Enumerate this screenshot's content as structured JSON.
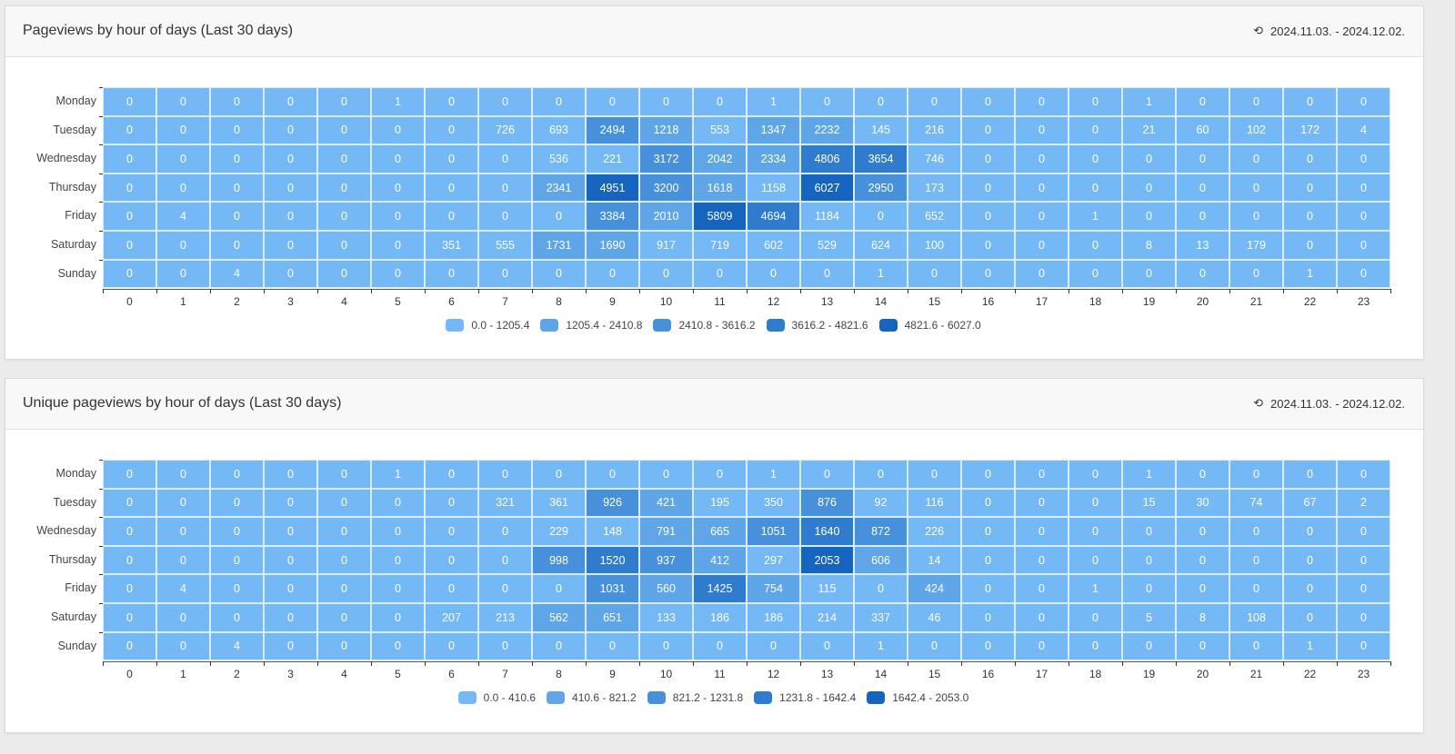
{
  "colors": [
    "#74b9f5",
    "#5fa6e8",
    "#4690dc",
    "#2f7ccf",
    "#1565c0"
  ],
  "panels": [
    {
      "title": "Pageviews by hour of days (Last 30 days)",
      "date_range": "2024.11.03. - 2024.12.02.",
      "icon": "history-icon"
    },
    {
      "title": "Unique pageviews by hour of days (Last 30 days)",
      "date_range": "2024.11.03. - 2024.12.02.",
      "icon": "history-icon"
    }
  ],
  "chart_data": [
    {
      "type": "heatmap",
      "x": [
        "0",
        "1",
        "2",
        "3",
        "4",
        "5",
        "6",
        "7",
        "8",
        "9",
        "10",
        "11",
        "12",
        "13",
        "14",
        "15",
        "16",
        "17",
        "18",
        "19",
        "20",
        "21",
        "22",
        "23"
      ],
      "y": [
        "Monday",
        "Tuesday",
        "Wednesday",
        "Thursday",
        "Friday",
        "Saturday",
        "Sunday"
      ],
      "legend": [
        "0.0 - 1205.4",
        "1205.4 - 2410.8",
        "2410.8 - 3616.2",
        "3616.2 - 4821.6",
        "4821.6 - 6027.0"
      ],
      "range": [
        0,
        6027
      ],
      "values": [
        [
          0,
          0,
          0,
          0,
          0,
          1,
          0,
          0,
          0,
          0,
          0,
          0,
          1,
          0,
          0,
          0,
          0,
          0,
          0,
          1,
          0,
          0,
          0,
          0
        ],
        [
          0,
          0,
          0,
          0,
          0,
          0,
          0,
          726,
          693,
          2494,
          1218,
          553,
          1347,
          2232,
          145,
          216,
          0,
          0,
          0,
          21,
          60,
          102,
          172,
          4
        ],
        [
          0,
          0,
          0,
          0,
          0,
          0,
          0,
          0,
          536,
          221,
          3172,
          2042,
          2334,
          4806,
          3654,
          746,
          0,
          0,
          0,
          0,
          0,
          0,
          0,
          0
        ],
        [
          0,
          0,
          0,
          0,
          0,
          0,
          0,
          0,
          2341,
          4951,
          3200,
          1618,
          1158,
          6027,
          2950,
          173,
          0,
          0,
          0,
          0,
          0,
          0,
          0,
          0
        ],
        [
          0,
          4,
          0,
          0,
          0,
          0,
          0,
          0,
          0,
          3384,
          2010,
          5809,
          4694,
          1184,
          0,
          652,
          0,
          0,
          1,
          0,
          0,
          0,
          0,
          0
        ],
        [
          0,
          0,
          0,
          0,
          0,
          0,
          351,
          555,
          1731,
          1690,
          917,
          719,
          602,
          529,
          624,
          100,
          0,
          0,
          0,
          8,
          13,
          179,
          0,
          0
        ],
        [
          0,
          0,
          4,
          0,
          0,
          0,
          0,
          0,
          0,
          0,
          0,
          0,
          0,
          0,
          1,
          0,
          0,
          0,
          0,
          0,
          0,
          0,
          1,
          0
        ]
      ]
    },
    {
      "type": "heatmap",
      "x": [
        "0",
        "1",
        "2",
        "3",
        "4",
        "5",
        "6",
        "7",
        "8",
        "9",
        "10",
        "11",
        "12",
        "13",
        "14",
        "15",
        "16",
        "17",
        "18",
        "19",
        "20",
        "21",
        "22",
        "23"
      ],
      "y": [
        "Monday",
        "Tuesday",
        "Wednesday",
        "Thursday",
        "Friday",
        "Saturday",
        "Sunday"
      ],
      "legend": [
        "0.0 - 410.6",
        "410.6 - 821.2",
        "821.2 - 1231.8",
        "1231.8 - 1642.4",
        "1642.4 - 2053.0"
      ],
      "range": [
        0,
        2053
      ],
      "values": [
        [
          0,
          0,
          0,
          0,
          0,
          1,
          0,
          0,
          0,
          0,
          0,
          0,
          1,
          0,
          0,
          0,
          0,
          0,
          0,
          1,
          0,
          0,
          0,
          0
        ],
        [
          0,
          0,
          0,
          0,
          0,
          0,
          0,
          321,
          361,
          926,
          421,
          195,
          350,
          876,
          92,
          116,
          0,
          0,
          0,
          15,
          30,
          74,
          67,
          2
        ],
        [
          0,
          0,
          0,
          0,
          0,
          0,
          0,
          0,
          229,
          148,
          791,
          665,
          1051,
          1640,
          872,
          226,
          0,
          0,
          0,
          0,
          0,
          0,
          0,
          0
        ],
        [
          0,
          0,
          0,
          0,
          0,
          0,
          0,
          0,
          998,
          1520,
          937,
          412,
          297,
          2053,
          606,
          14,
          0,
          0,
          0,
          0,
          0,
          0,
          0,
          0
        ],
        [
          0,
          4,
          0,
          0,
          0,
          0,
          0,
          0,
          0,
          1031,
          560,
          1425,
          754,
          115,
          0,
          424,
          0,
          0,
          1,
          0,
          0,
          0,
          0,
          0
        ],
        [
          0,
          0,
          0,
          0,
          0,
          0,
          207,
          213,
          562,
          651,
          133,
          186,
          186,
          214,
          337,
          46,
          0,
          0,
          0,
          5,
          8,
          108,
          0,
          0
        ],
        [
          0,
          0,
          4,
          0,
          0,
          0,
          0,
          0,
          0,
          0,
          0,
          0,
          0,
          0,
          1,
          0,
          0,
          0,
          0,
          0,
          0,
          0,
          1,
          0
        ]
      ]
    }
  ]
}
